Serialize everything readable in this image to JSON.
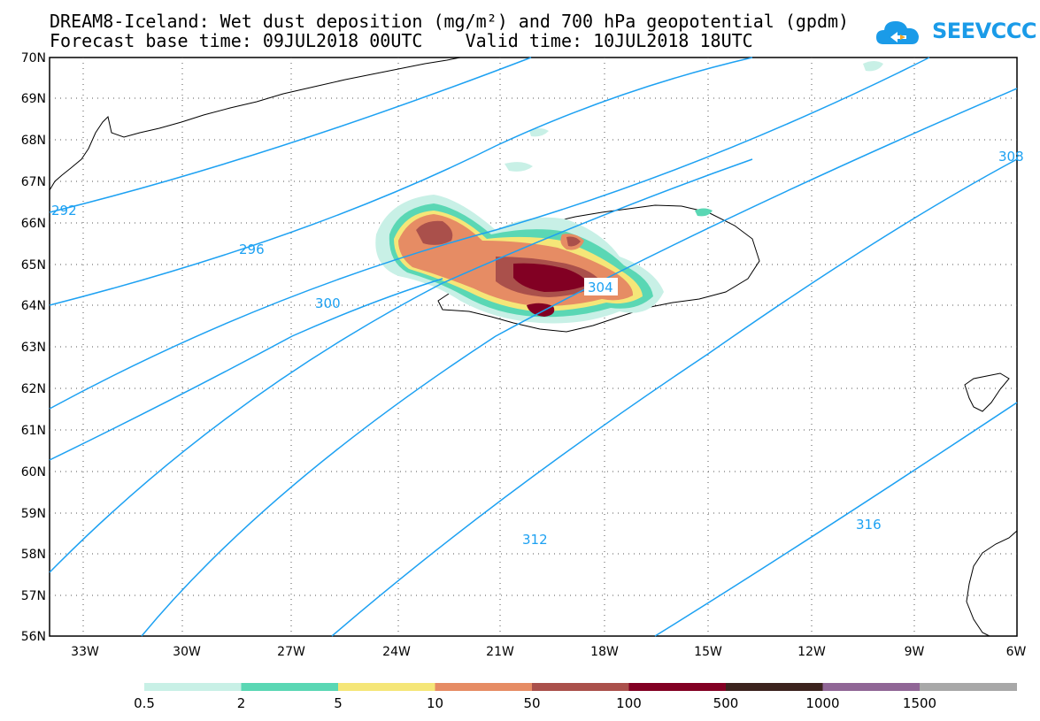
{
  "title": {
    "line1": "DREAM8-Iceland: Wet dust deposition (mg/m²) and 700 hPa geopotential (gpdm)",
    "line2": "Forecast base time: 09JUL2018 00UTC    Valid time: 10JUL2018 18UTC"
  },
  "logo": {
    "text": "SEEVCCC",
    "color": "#1a9be8"
  },
  "map": {
    "lat_labels": [
      "70N",
      "69N",
      "68N",
      "67N",
      "66N",
      "65N",
      "64N",
      "63N",
      "62N",
      "61N",
      "60N",
      "59N",
      "58N",
      "57N",
      "56N"
    ],
    "lon_labels": [
      "33W",
      "30W",
      "27W",
      "24W",
      "21W",
      "18W",
      "15W",
      "12W",
      "9W",
      "6W"
    ],
    "contour_color": "#1da1f2",
    "contour_labels": [
      "292",
      "296",
      "300",
      "304",
      "308",
      "312",
      "316"
    ]
  },
  "colorbar": {
    "ticks": [
      "0.5",
      "2",
      "5",
      "10",
      "50",
      "100",
      "500",
      "1000",
      "1500"
    ],
    "colors": [
      "#c8f0e6",
      "#5ad7b4",
      "#f5e678",
      "#e68c64",
      "#aa504b",
      "#820023",
      "#3c231e",
      "#906696",
      "#a8a8a8"
    ]
  }
}
